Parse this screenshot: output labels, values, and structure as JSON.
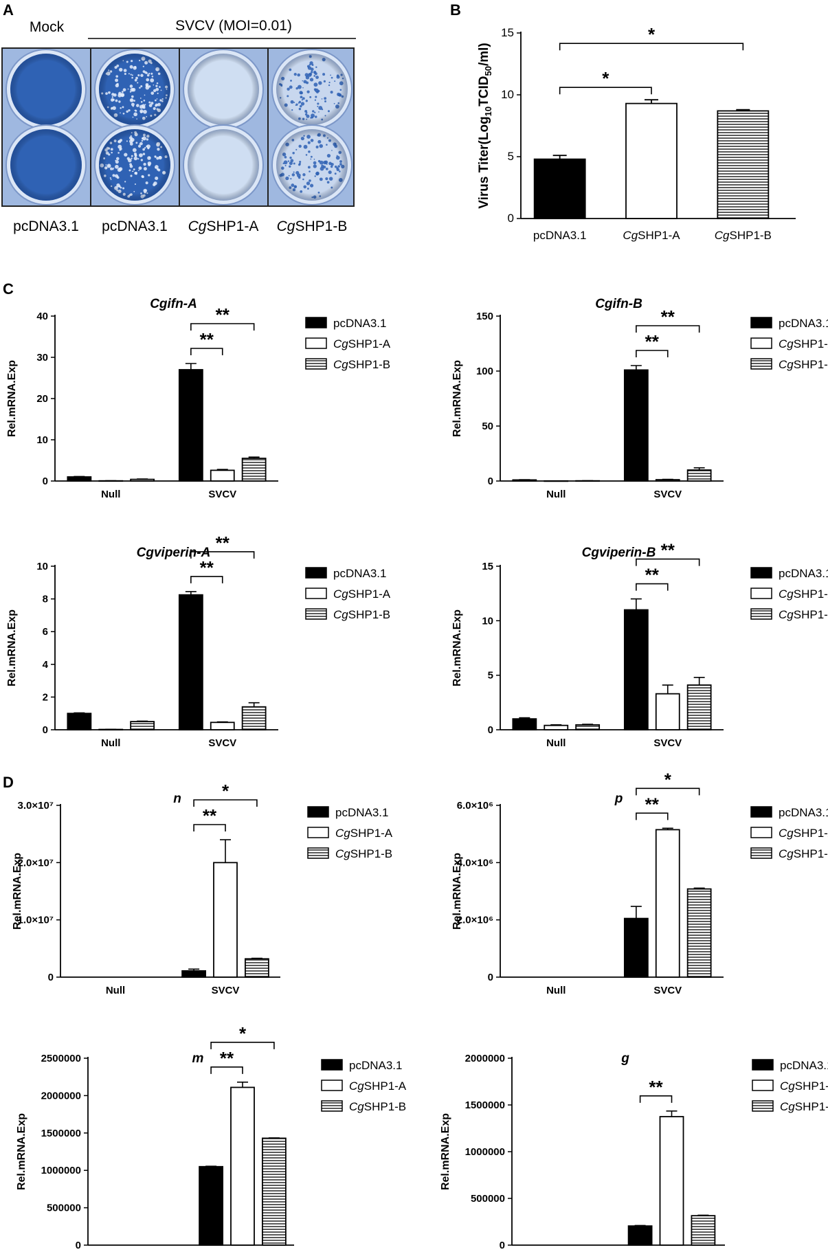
{
  "panels": {
    "A": "A",
    "B": "B",
    "C": "C",
    "D": "D"
  },
  "plate": {
    "mock_label": "Mock",
    "infection_label": "SVCV (MOI=0.01)",
    "lanes": [
      {
        "prefix": "",
        "name": "pcDNA3.1",
        "state": "intact"
      },
      {
        "prefix": "",
        "name": "pcDNA3.1",
        "state": "plaques"
      },
      {
        "prefix": "Cg",
        "name": "SHP1-A",
        "state": "cleared"
      },
      {
        "prefix": "Cg",
        "name": "SHP1-B",
        "state": "speckled"
      }
    ],
    "colors": {
      "monolayer": "#2f62b4",
      "cleared": "#cfdef2",
      "plate_bg": "#9fb8e0"
    }
  },
  "legend": [
    {
      "prefix": "",
      "name": "pcDNA3.1",
      "pattern": "solid"
    },
    {
      "prefix": "Cg",
      "name": "SHP1-A",
      "pattern": "open"
    },
    {
      "prefix": "Cg",
      "name": "SHP1-B",
      "pattern": "hatched"
    }
  ],
  "chart_data": [
    {
      "id": "B",
      "type": "bar",
      "title": "",
      "ylabel_parts": [
        "Virus Titer(Log",
        "10",
        "TCID",
        "50",
        "/ml)"
      ],
      "ylim": [
        0,
        15
      ],
      "yticks": [
        "0",
        "5",
        "10",
        "15"
      ],
      "categories": [
        {
          "prefix": "",
          "name": "pcDNA3.1"
        },
        {
          "prefix": "Cg",
          "name": "SHP1-A"
        },
        {
          "prefix": "Cg",
          "name": "SHP1-B"
        }
      ],
      "values": [
        4.8,
        9.3,
        8.7
      ],
      "errors": [
        0.3,
        0.3,
        0.1
      ],
      "significance": [
        {
          "from": 0,
          "to": 1,
          "label": "*"
        },
        {
          "from": 0,
          "to": 2,
          "label": "*"
        }
      ]
    },
    {
      "id": "C1",
      "type": "bar",
      "title": "Cgifn-A",
      "ylabel": "Rel.mRNA.Exp",
      "ylim": [
        0,
        40
      ],
      "yticks": [
        "0",
        "10",
        "20",
        "30",
        "40"
      ],
      "groups": [
        "Null",
        "SVCV"
      ],
      "series": [
        {
          "name": "pcDNA3.1",
          "values": [
            1.0,
            27.0
          ],
          "errors": [
            0.1,
            1.5
          ]
        },
        {
          "name": "CgSHP1-A",
          "values": [
            0.05,
            2.6
          ],
          "errors": [
            0.02,
            0.2
          ]
        },
        {
          "name": "CgSHP1-B",
          "values": [
            0.4,
            5.5
          ],
          "errors": [
            0.1,
            0.3
          ]
        }
      ],
      "significance": [
        {
          "from": 0,
          "to": 1,
          "label": "**"
        },
        {
          "from": 0,
          "to": 2,
          "label": "**"
        }
      ]
    },
    {
      "id": "C2",
      "type": "bar",
      "title": "Cgifn-B",
      "ylabel": "Rel.mRNA.Exp",
      "ylim": [
        0,
        150
      ],
      "yticks": [
        "0",
        "50",
        "100",
        "150"
      ],
      "groups": [
        "Null",
        "SVCV"
      ],
      "series": [
        {
          "name": "pcDNA3.1",
          "values": [
            1.0,
            101.0
          ],
          "errors": [
            0.2,
            4.0
          ]
        },
        {
          "name": "CgSHP1-A",
          "values": [
            0.1,
            1.2
          ],
          "errors": [
            0.05,
            0.3
          ]
        },
        {
          "name": "CgSHP1-B",
          "values": [
            0.2,
            10.0
          ],
          "errors": [
            0.05,
            2.0
          ]
        }
      ],
      "significance": [
        {
          "from": 0,
          "to": 1,
          "label": "**"
        },
        {
          "from": 0,
          "to": 2,
          "label": "**"
        }
      ]
    },
    {
      "id": "C3",
      "type": "bar",
      "title": "Cgviperin-A",
      "ylabel": "Rel.mRNA.Exp",
      "ylim": [
        0,
        10
      ],
      "yticks": [
        "0",
        "2",
        "4",
        "6",
        "8",
        "10"
      ],
      "groups": [
        "Null",
        "SVCV"
      ],
      "series": [
        {
          "name": "pcDNA3.1",
          "values": [
            1.0,
            8.25
          ],
          "errors": [
            0.03,
            0.2
          ]
        },
        {
          "name": "CgSHP1-A",
          "values": [
            0.02,
            0.45
          ],
          "errors": [
            0.01,
            0.03
          ]
        },
        {
          "name": "CgSHP1-B",
          "values": [
            0.5,
            1.4
          ],
          "errors": [
            0.03,
            0.25
          ]
        }
      ],
      "significance": [
        {
          "from": 0,
          "to": 1,
          "label": "**"
        },
        {
          "from": 0,
          "to": 2,
          "label": "**"
        }
      ]
    },
    {
      "id": "C4",
      "type": "bar",
      "title": "Cgviperin-B",
      "ylabel": "Rel.mRNA.Exp",
      "ylim": [
        0,
        15
      ],
      "yticks": [
        "0",
        "5",
        "10",
        "15"
      ],
      "groups": [
        "Null",
        "SVCV"
      ],
      "series": [
        {
          "name": "pcDNA3.1",
          "values": [
            1.0,
            11.0
          ],
          "errors": [
            0.1,
            1.0
          ]
        },
        {
          "name": "CgSHP1-A",
          "values": [
            0.4,
            3.3
          ],
          "errors": [
            0.05,
            0.8
          ]
        },
        {
          "name": "CgSHP1-B",
          "values": [
            0.45,
            4.1
          ],
          "errors": [
            0.05,
            0.7
          ]
        }
      ],
      "significance": [
        {
          "from": 0,
          "to": 1,
          "label": "**"
        },
        {
          "from": 0,
          "to": 2,
          "label": "**"
        }
      ]
    },
    {
      "id": "D1",
      "type": "bar",
      "title": "n",
      "ylabel": "Rel.mRNA.Exp",
      "ylim": [
        0,
        30000000
      ],
      "yticks": [
        "0",
        "1.0×10⁷",
        "2.0×10⁷",
        "3.0×10⁷"
      ],
      "groups": [
        "Null",
        "SVCV"
      ],
      "series": [
        {
          "name": "pcDNA3.1",
          "values": [
            0,
            1100000
          ],
          "errors": [
            0,
            300000
          ]
        },
        {
          "name": "CgSHP1-A",
          "values": [
            0,
            20000000
          ],
          "errors": [
            0,
            4000000
          ]
        },
        {
          "name": "CgSHP1-B",
          "values": [
            0,
            3200000
          ],
          "errors": [
            0,
            100000
          ]
        }
      ],
      "significance": [
        {
          "from": 0,
          "to": 1,
          "label": "**"
        },
        {
          "from": 0,
          "to": 2,
          "label": "*"
        }
      ]
    },
    {
      "id": "D2",
      "type": "bar",
      "title": "p",
      "ylabel": "Rel.mRNA.Exp",
      "ylim": [
        0,
        6000000
      ],
      "yticks": [
        "0",
        "2.0×10⁶",
        "4.0×10⁶",
        "6.0×10⁶"
      ],
      "groups": [
        "Null",
        "SVCV"
      ],
      "series": [
        {
          "name": "pcDNA3.1",
          "values": [
            0,
            2050000
          ],
          "errors": [
            0,
            420000
          ]
        },
        {
          "name": "CgSHP1-A",
          "values": [
            0,
            5150000
          ],
          "errors": [
            0,
            50000
          ]
        },
        {
          "name": "CgSHP1-B",
          "values": [
            0,
            3080000
          ],
          "errors": [
            0,
            30000
          ]
        }
      ],
      "significance": [
        {
          "from": 0,
          "to": 1,
          "label": "**"
        },
        {
          "from": 0,
          "to": 2,
          "label": "*"
        }
      ]
    },
    {
      "id": "D3",
      "type": "bar",
      "title": "m",
      "ylabel": "Rel.mRNA.Exp",
      "ylim": [
        0,
        2500000
      ],
      "yticks": [
        "0",
        "500000",
        "1000000",
        "1500000",
        "2000000",
        "2500000"
      ],
      "groups": [
        "Null",
        "SVCV"
      ],
      "series": [
        {
          "name": "pcDNA3.1",
          "values": [
            0,
            1050000
          ],
          "errors": [
            0,
            5000
          ]
        },
        {
          "name": "CgSHP1-A",
          "values": [
            0,
            2110000
          ],
          "errors": [
            0,
            70000
          ]
        },
        {
          "name": "CgSHP1-B",
          "values": [
            0,
            1430000
          ],
          "errors": [
            0,
            5000
          ]
        }
      ],
      "significance": [
        {
          "from": 0,
          "to": 1,
          "label": "**"
        },
        {
          "from": 0,
          "to": 2,
          "label": "*"
        }
      ]
    },
    {
      "id": "D4",
      "type": "bar",
      "title": "g",
      "ylabel": "Rel.mRNA.Exp",
      "ylim": [
        0,
        2000000
      ],
      "yticks": [
        "0",
        "500000",
        "1000000",
        "1500000",
        "2000000"
      ],
      "groups": [
        "Null",
        "SVCV"
      ],
      "series": [
        {
          "name": "pcDNA3.1",
          "values": [
            0,
            205000
          ],
          "errors": [
            0,
            5000
          ]
        },
        {
          "name": "CgSHP1-A",
          "values": [
            0,
            1375000
          ],
          "errors": [
            0,
            60000
          ]
        },
        {
          "name": "CgSHP1-B",
          "values": [
            0,
            315000
          ],
          "errors": [
            0,
            5000
          ]
        }
      ],
      "significance": [
        {
          "from": 0,
          "to": 1,
          "label": "**"
        }
      ]
    }
  ]
}
